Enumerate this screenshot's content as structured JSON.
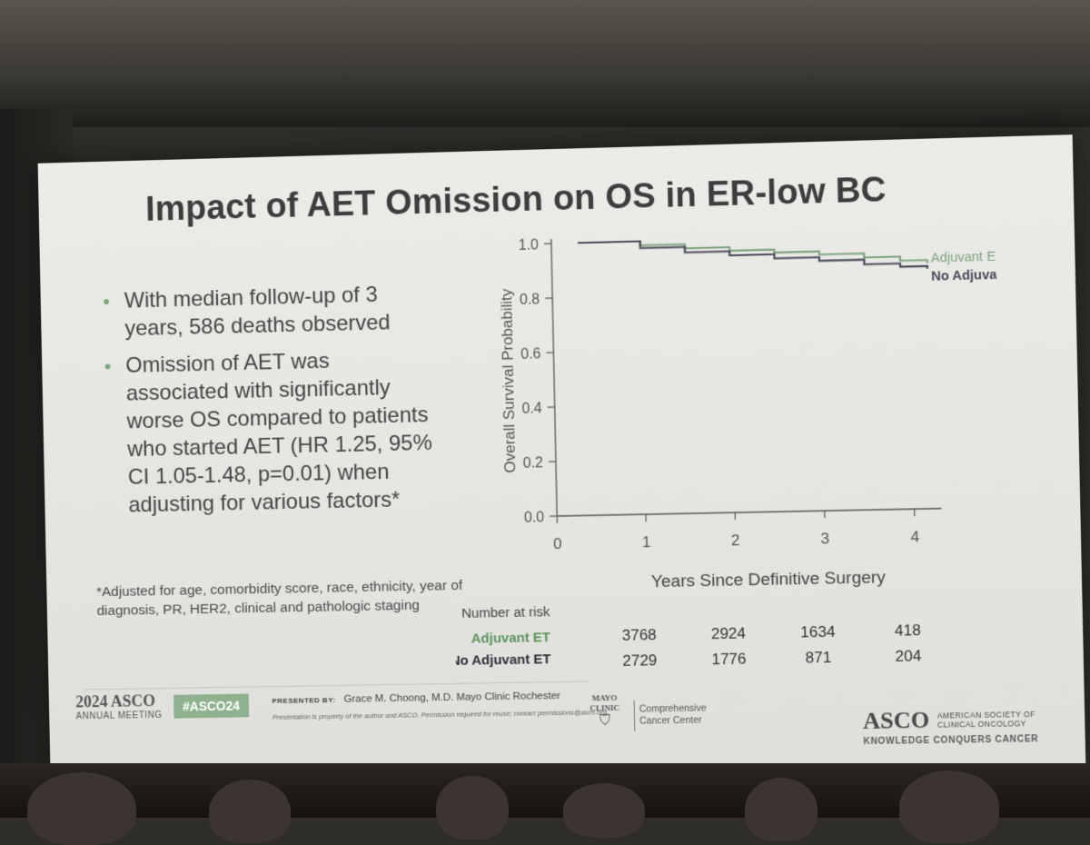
{
  "slide": {
    "title": "Impact of AET Omission on OS in ER-low BC",
    "bullets": [
      "With median follow-up of 3 years, 586 deaths observed",
      "Omission of AET was associated with significantly worse OS compared to patients who started AET (HR 1.25, 95% CI 1.05-1.48, p=0.01) when adjusting for various factors*"
    ],
    "footnote": "*Adjusted for age, comorbidity score, race, ethnicity,  year of diagnosis, PR, HER2, clinical and pathologic staging"
  },
  "chart_data": {
    "type": "line",
    "ylabel": "Overall Survival Probability",
    "xlabel": "Years Since Definitive Surgery",
    "xlim": [
      0,
      4.3
    ],
    "ylim": [
      0,
      1.0
    ],
    "xticks": [
      "0",
      "1",
      "2",
      "3",
      "4"
    ],
    "yticks": [
      "0.0",
      "0.2",
      "0.4",
      "0.6",
      "0.8",
      "1.0"
    ],
    "grid": false,
    "series": [
      {
        "name": "Adjuvant ET",
        "color": "#7fa37f",
        "points": [
          [
            0.3,
            1.0
          ],
          [
            1.0,
            0.985
          ],
          [
            1.5,
            0.97
          ],
          [
            2.0,
            0.957
          ],
          [
            2.5,
            0.946
          ],
          [
            3.0,
            0.935
          ],
          [
            3.5,
            0.92
          ],
          [
            3.9,
            0.905
          ],
          [
            4.2,
            0.893
          ]
        ]
      },
      {
        "name": "No Adjuvant ET",
        "color": "#4a4a5a",
        "points": [
          [
            0.3,
            1.0
          ],
          [
            1.0,
            0.975
          ],
          [
            1.5,
            0.955
          ],
          [
            2.0,
            0.94
          ],
          [
            2.5,
            0.925
          ],
          [
            3.0,
            0.912
          ],
          [
            3.5,
            0.895
          ],
          [
            3.9,
            0.883
          ],
          [
            4.2,
            0.873
          ]
        ]
      }
    ],
    "risk_table": {
      "title": "Number at risk",
      "rows": [
        {
          "label": "Adjuvant ET",
          "color": "#5f935f",
          "values": [
            "3768",
            "2924",
            "1634",
            "418"
          ]
        },
        {
          "label": "No Adjuvant ET",
          "color": "#2f2f3a",
          "values": [
            "2729",
            "1776",
            "871",
            "204"
          ]
        }
      ]
    }
  },
  "footer": {
    "meeting_year": "2024 ASCO",
    "meeting_name": "ANNUAL MEETING",
    "hashtag": "#ASCO24",
    "presented_by_label": "PRESENTED BY:",
    "presenter": "Grace M. Choong, M.D. Mayo Clinic Rochester",
    "property_note": "Presentation is property of the author and ASCO. Permission required for reuse; contact permissions@asco.org.",
    "mayo_line1": "MAYO",
    "mayo_line2": "CLINIC",
    "cancer_center_line1": "Comprehensive",
    "cancer_center_line2": "Cancer Center",
    "asco_logo": "ASCO",
    "asco_full_line1": "AMERICAN SOCIETY OF",
    "asco_full_line2": "CLINICAL ONCOLOGY",
    "asco_tagline": "KNOWLEDGE CONQUERS CANCER"
  }
}
